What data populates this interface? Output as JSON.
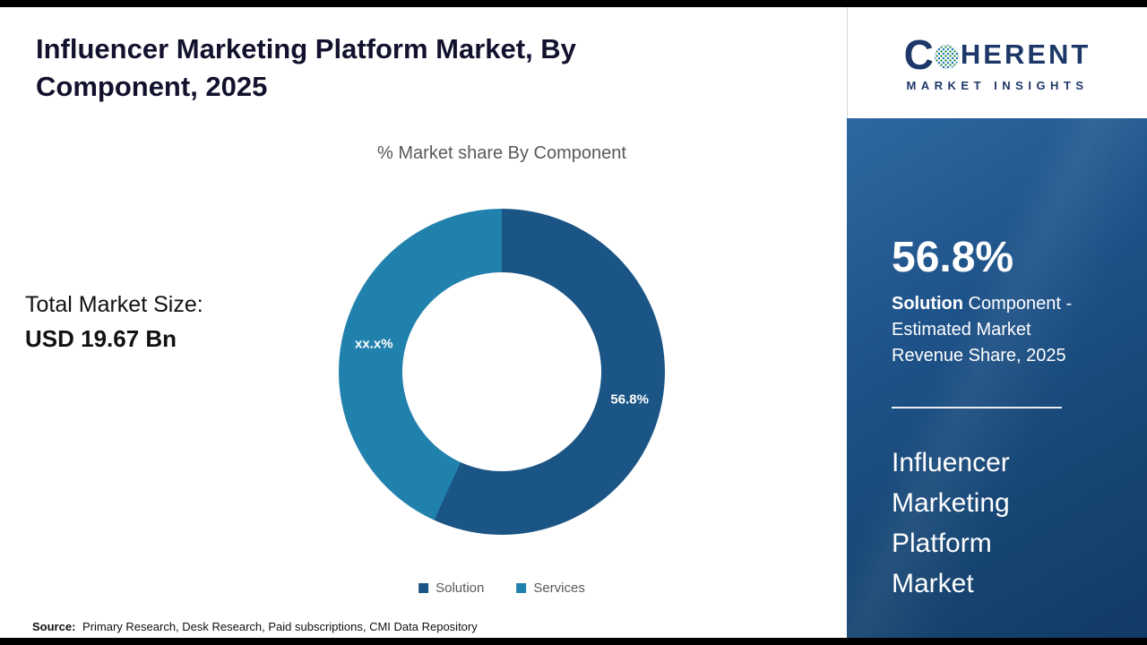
{
  "page": {
    "title": "Influencer Marketing Platform Market, By Component, 2025",
    "source_label": "Source:",
    "source_text": "Primary Research, Desk Research, Paid subscriptions, CMI Data Repository"
  },
  "main": {
    "total_market_label": "Total Market Size:",
    "total_market_value": "USD 19.67 Bn"
  },
  "chart_data": {
    "type": "pie",
    "subtype": "donut",
    "title": "% Market share By Component",
    "categories": [
      "Solution",
      "Services"
    ],
    "values": [
      56.8,
      43.2
    ],
    "slice_labels": [
      "56.8%",
      "xx.x%"
    ],
    "colors": [
      "#1b5585",
      "#2181ad"
    ],
    "legend_position": "bottom"
  },
  "sidebar": {
    "logo": {
      "letter_c": "C",
      "letters_rest": "HERENT",
      "subline": "MARKET INSIGHTS"
    },
    "stat_value": "56.8%",
    "stat_desc_bold": "Solution",
    "stat_desc_rest": " Component - Estimated Market Revenue Share, 2025",
    "product_title": "Influencer Marketing Platform Market"
  }
}
